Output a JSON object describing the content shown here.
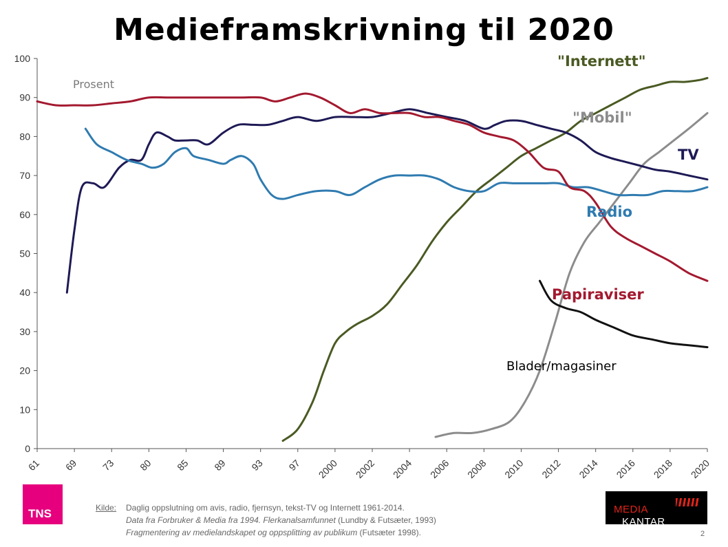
{
  "title": "Medieframskrivning til 2020",
  "chart_data": {
    "type": "line",
    "ylabel": "Prosent",
    "ylim": [
      0,
      100
    ],
    "yticks": [
      "0",
      "10",
      "20",
      "30",
      "40",
      "50",
      "60",
      "70",
      "80",
      "90",
      "100"
    ],
    "xtick_labels": [
      "61",
      "69",
      "73",
      "80",
      "85",
      "89",
      "93",
      "97",
      "2000",
      "2002",
      "2004",
      "2006",
      "2008",
      "2010",
      "2012",
      "2014",
      "2016",
      "2018",
      "2020"
    ],
    "series": [
      {
        "name": "\"Internett\"",
        "color": "#4a5a23",
        "label_color": "#4a5a23",
        "points": [
          [
            6.6,
            2
          ],
          [
            7.0,
            5
          ],
          [
            7.4,
            12
          ],
          [
            7.7,
            20
          ],
          [
            8.0,
            27
          ],
          [
            8.3,
            30
          ],
          [
            8.6,
            32
          ],
          [
            9.0,
            34
          ],
          [
            9.4,
            37
          ],
          [
            9.8,
            42
          ],
          [
            10.2,
            47
          ],
          [
            10.6,
            53
          ],
          [
            11.0,
            58
          ],
          [
            11.4,
            62
          ],
          [
            11.8,
            66
          ],
          [
            12.2,
            69
          ],
          [
            12.6,
            72
          ],
          [
            13.0,
            75
          ],
          [
            13.4,
            77
          ],
          [
            13.8,
            79
          ],
          [
            14.2,
            81
          ],
          [
            14.6,
            84
          ],
          [
            15.0,
            86
          ],
          [
            15.4,
            88
          ],
          [
            15.8,
            90
          ],
          [
            16.2,
            92
          ],
          [
            16.6,
            93
          ],
          [
            17.0,
            94
          ],
          [
            17.4,
            94
          ],
          [
            17.8,
            94.5
          ],
          [
            18.0,
            95
          ]
        ]
      },
      {
        "name": "\"Mobil\"",
        "color": "#8c8c8c",
        "label_color": "#8c8c8c",
        "points": [
          [
            10.7,
            3
          ],
          [
            11.2,
            4
          ],
          [
            11.7,
            4
          ],
          [
            12.2,
            5
          ],
          [
            12.7,
            7
          ],
          [
            13.1,
            12
          ],
          [
            13.5,
            20
          ],
          [
            13.9,
            32
          ],
          [
            14.3,
            45
          ],
          [
            14.7,
            53
          ],
          [
            15.1,
            58
          ],
          [
            15.5,
            63
          ],
          [
            15.9,
            68
          ],
          [
            16.3,
            73
          ],
          [
            16.7,
            76
          ],
          [
            17.1,
            79
          ],
          [
            17.5,
            82
          ],
          [
            18.0,
            86
          ]
        ]
      },
      {
        "name": "TV",
        "color": "#1e1a55",
        "label_color": "#1e1a55",
        "points": [
          [
            0.8,
            40
          ],
          [
            1.0,
            56
          ],
          [
            1.2,
            67
          ],
          [
            1.5,
            68
          ],
          [
            1.8,
            67
          ],
          [
            2.2,
            72
          ],
          [
            2.5,
            74
          ],
          [
            2.8,
            74
          ],
          [
            3.0,
            78
          ],
          [
            3.2,
            81
          ],
          [
            3.5,
            80
          ],
          [
            3.7,
            79
          ],
          [
            4.0,
            79
          ],
          [
            4.3,
            79
          ],
          [
            4.6,
            78
          ],
          [
            5.0,
            81
          ],
          [
            5.4,
            83
          ],
          [
            5.8,
            83
          ],
          [
            6.2,
            83
          ],
          [
            6.6,
            84
          ],
          [
            7.0,
            85
          ],
          [
            7.5,
            84
          ],
          [
            8.0,
            85
          ],
          [
            8.5,
            85
          ],
          [
            9.0,
            85
          ],
          [
            9.5,
            86
          ],
          [
            10.0,
            87
          ],
          [
            10.5,
            86
          ],
          [
            11.0,
            85
          ],
          [
            11.5,
            84
          ],
          [
            12.0,
            82
          ],
          [
            12.3,
            83
          ],
          [
            12.6,
            84
          ],
          [
            13.0,
            84
          ],
          [
            13.4,
            83
          ],
          [
            13.8,
            82
          ],
          [
            14.2,
            81
          ],
          [
            14.6,
            79
          ],
          [
            15.0,
            76
          ],
          [
            15.4,
            74.5
          ],
          [
            15.8,
            73.5
          ],
          [
            16.2,
            72.5
          ],
          [
            16.6,
            71.5
          ],
          [
            17.0,
            71
          ],
          [
            17.5,
            70
          ],
          [
            18.0,
            69
          ]
        ]
      },
      {
        "name": "Radio",
        "color": "#2f7bb0",
        "label_color": "#2f7bb0",
        "points": [
          [
            1.3,
            82
          ],
          [
            1.6,
            78
          ],
          [
            2.0,
            76
          ],
          [
            2.4,
            74
          ],
          [
            2.8,
            73
          ],
          [
            3.1,
            72
          ],
          [
            3.4,
            73
          ],
          [
            3.7,
            76
          ],
          [
            4.0,
            77
          ],
          [
            4.2,
            75
          ],
          [
            4.6,
            74
          ],
          [
            5.0,
            73
          ],
          [
            5.2,
            74
          ],
          [
            5.5,
            75
          ],
          [
            5.8,
            73
          ],
          [
            6.0,
            69
          ],
          [
            6.3,
            65
          ],
          [
            6.6,
            64
          ],
          [
            7.0,
            65
          ],
          [
            7.5,
            66
          ],
          [
            8.0,
            66
          ],
          [
            8.4,
            65
          ],
          [
            8.8,
            67
          ],
          [
            9.2,
            69
          ],
          [
            9.6,
            70
          ],
          [
            10.0,
            70
          ],
          [
            10.4,
            70
          ],
          [
            10.8,
            69
          ],
          [
            11.2,
            67
          ],
          [
            11.6,
            66
          ],
          [
            12.0,
            66
          ],
          [
            12.4,
            68
          ],
          [
            12.8,
            68
          ],
          [
            13.2,
            68
          ],
          [
            13.6,
            68
          ],
          [
            14.0,
            68
          ],
          [
            14.4,
            67
          ],
          [
            14.8,
            67
          ],
          [
            15.2,
            66
          ],
          [
            15.6,
            65
          ],
          [
            16.0,
            65
          ],
          [
            16.4,
            65
          ],
          [
            16.8,
            66
          ],
          [
            17.2,
            66
          ],
          [
            17.6,
            66
          ],
          [
            18.0,
            67
          ]
        ]
      },
      {
        "name": "Papiraviser",
        "color": "#a3192f",
        "label_color": "#a3192f",
        "points": [
          [
            0.0,
            89
          ],
          [
            0.5,
            88
          ],
          [
            1.0,
            88
          ],
          [
            1.5,
            88
          ],
          [
            2.0,
            88.5
          ],
          [
            2.5,
            89
          ],
          [
            3.0,
            90
          ],
          [
            3.5,
            90
          ],
          [
            4.0,
            90
          ],
          [
            4.5,
            90
          ],
          [
            5.0,
            90
          ],
          [
            5.5,
            90
          ],
          [
            6.0,
            90
          ],
          [
            6.4,
            89
          ],
          [
            6.8,
            90
          ],
          [
            7.2,
            91
          ],
          [
            7.6,
            90
          ],
          [
            8.0,
            88
          ],
          [
            8.4,
            86
          ],
          [
            8.8,
            87
          ],
          [
            9.2,
            86
          ],
          [
            9.6,
            86
          ],
          [
            10.0,
            86
          ],
          [
            10.4,
            85
          ],
          [
            10.8,
            85
          ],
          [
            11.2,
            84
          ],
          [
            11.6,
            83
          ],
          [
            12.0,
            81
          ],
          [
            12.4,
            80
          ],
          [
            12.8,
            79
          ],
          [
            13.2,
            76
          ],
          [
            13.6,
            72
          ],
          [
            14.0,
            71
          ],
          [
            14.3,
            67
          ],
          [
            14.7,
            66
          ],
          [
            15.0,
            63
          ],
          [
            15.4,
            57
          ],
          [
            15.8,
            54
          ],
          [
            16.2,
            52
          ],
          [
            16.6,
            50
          ],
          [
            17.0,
            48
          ],
          [
            17.5,
            45
          ],
          [
            18.0,
            43
          ]
        ]
      },
      {
        "name": "Blader/magasiner",
        "color": "#111111",
        "label_color": "#000000",
        "points": [
          [
            13.5,
            43
          ],
          [
            13.8,
            38
          ],
          [
            14.2,
            36
          ],
          [
            14.6,
            35
          ],
          [
            15.0,
            33
          ],
          [
            15.5,
            31
          ],
          [
            16.0,
            29
          ],
          [
            16.5,
            28
          ],
          [
            17.0,
            27
          ],
          [
            17.5,
            26.5
          ],
          [
            18.0,
            26
          ]
        ]
      }
    ]
  },
  "source": {
    "label": "Kilde:",
    "line1": "Daglig oppslutning om avis, radio, fjernsyn, tekst-TV og Internett 1961-2014.",
    "line2_italic": "Data fra Forbruker & Media fra 1994. Flerkanalsamfunnet",
    "line2_rest": " (Lundby & Futsæter, 1993)",
    "line3_italic": "Fragmentering av medielandskapet og oppsplitting av publikum",
    "line3_rest": " (Futsæter 1998)."
  },
  "logos": {
    "left": "TNS",
    "right_a": "KANTAR",
    "right_b": "MEDIA"
  },
  "page_number": "2"
}
